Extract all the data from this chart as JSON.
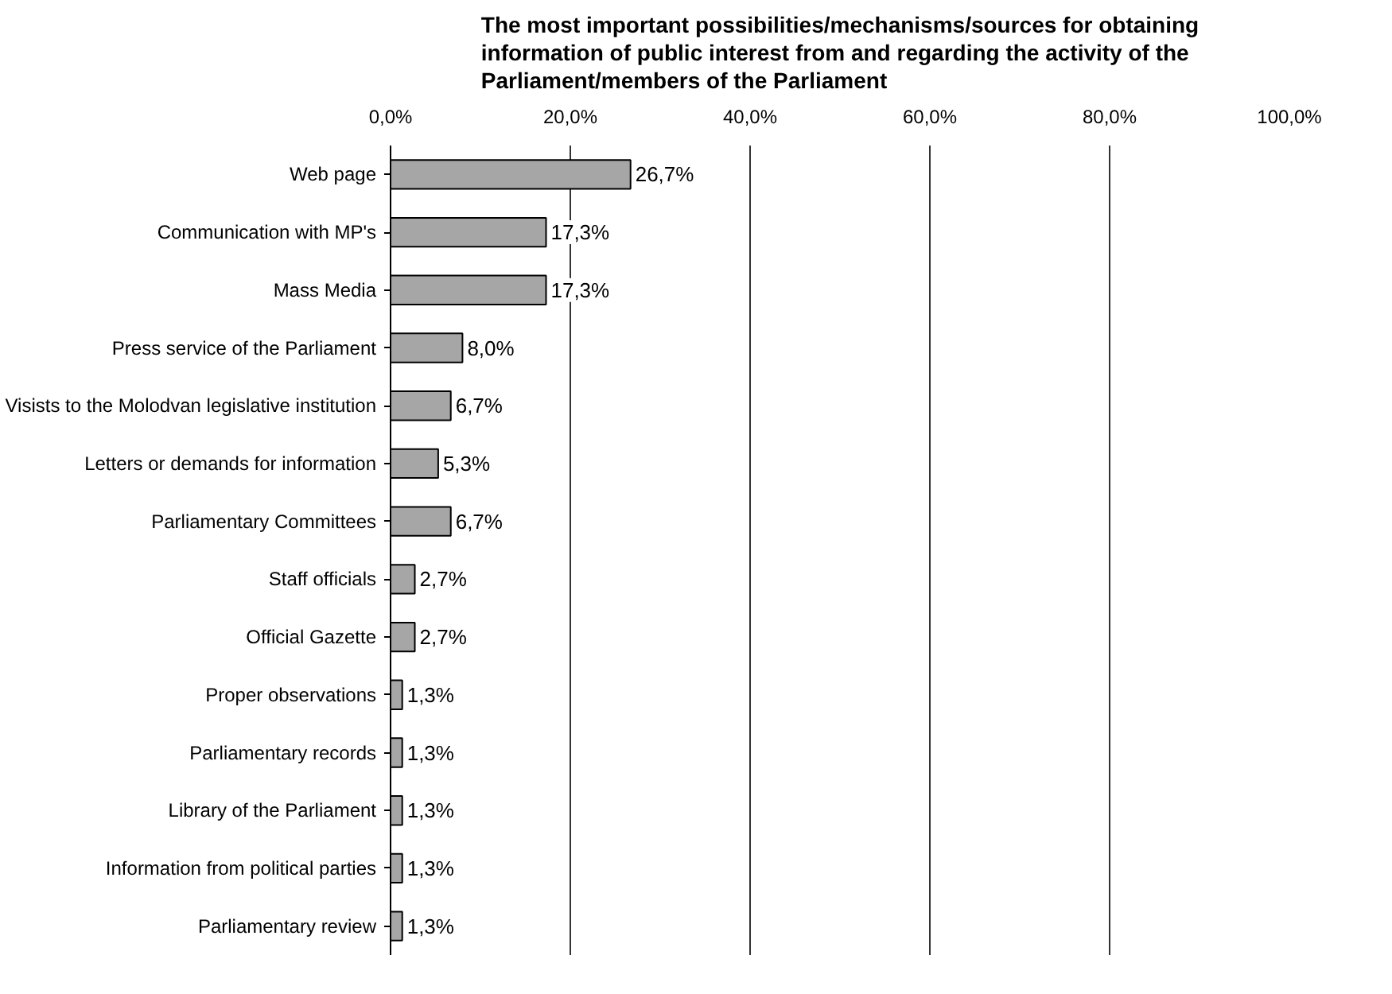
{
  "chart_data": {
    "type": "bar",
    "orientation": "horizontal",
    "title": "The most important possibilities/mechanisms/sources for obtaining information of public interest from and regarding the activity of the Parliament/members of the Parliament",
    "categories": [
      "Web page",
      "Communication with MP's",
      "Mass Media",
      "Press service of the Parliament",
      "Visists to the Molodvan legislative institution",
      "Letters or demands for information",
      "Parliamentary Committees",
      "Staff officials",
      "Official Gazette",
      "Proper observations",
      "Parliamentary records",
      "Library of the Parliament",
      "Information from political parties",
      "Parliamentary review"
    ],
    "values": [
      26.7,
      17.3,
      17.3,
      8.0,
      6.7,
      5.3,
      6.7,
      2.7,
      2.7,
      1.3,
      1.3,
      1.3,
      1.3,
      1.3
    ],
    "value_labels": [
      "26,7%",
      "17,3%",
      "17,3%",
      "8,0%",
      "6,7%",
      "5,3%",
      "6,7%",
      "2,7%",
      "2,7%",
      "1,3%",
      "1,3%",
      "1,3%",
      "1,3%",
      "1,3%"
    ],
    "color": "#a6a6a6",
    "xlim": [
      0,
      100
    ],
    "xticks": [
      {
        "value": 0,
        "label": "0,0%"
      },
      {
        "value": 20,
        "label": "20,0%"
      },
      {
        "value": 40,
        "label": "40,0%"
      },
      {
        "value": 60,
        "label": "60,0%"
      },
      {
        "value": 80,
        "label": "80,0%"
      },
      {
        "value": 100,
        "label": "100,0%"
      }
    ],
    "grid": "x"
  }
}
